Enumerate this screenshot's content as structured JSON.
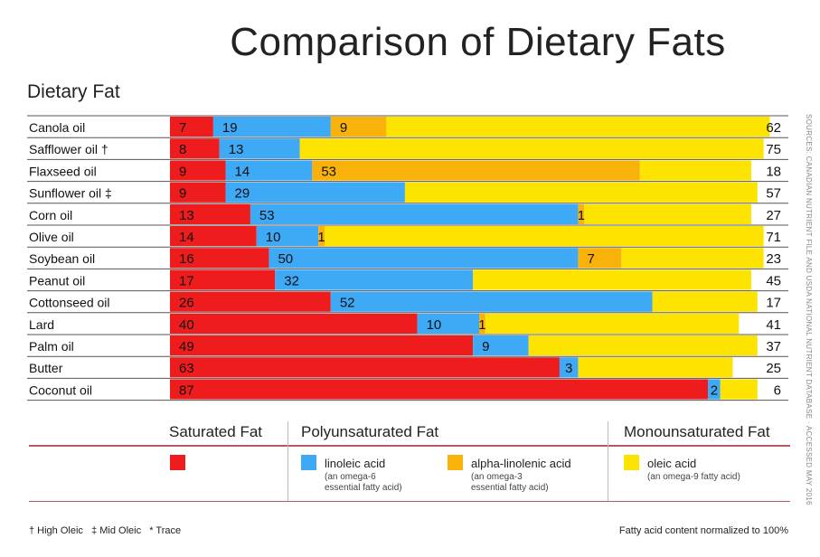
{
  "title": "Comparison of Dietary Fats",
  "subtitle": "Dietary Fat",
  "source_note": "SOURCES: CANADIAN NUTRIENT FILE AND USDA NATIONAL NUTRIENT DATABASE · ACCESSED MAY 2016",
  "colors": {
    "saturated": "#ee1c1c",
    "linoleic": "#3ea9f5",
    "alpha_linolenic": "#f8b20a",
    "oleic": "#fde400",
    "row_line": "#555555",
    "legend_line": "#b35a5a"
  },
  "legend": {
    "headers": [
      "Saturated Fat",
      "Polyunsaturated Fat",
      "Monounsaturated Fat"
    ],
    "items": [
      {
        "label": "linoleic acid",
        "sub1": "(an omega-6",
        "sub2": "essential fatty acid)"
      },
      {
        "label": "alpha-linolenic acid",
        "sub1": "(an omega-3",
        "sub2": "essential fatty acid)"
      },
      {
        "label": "oleic acid",
        "sub1": "(an omega-9 fatty acid)",
        "sub2": ""
      }
    ]
  },
  "footer": {
    "left": "† High Oleic   ‡ Mid Oleic   * Trace",
    "right": "Fatty acid content normalized to 100%"
  },
  "chart_data": {
    "type": "bar",
    "stacked": true,
    "orientation": "horizontal",
    "categories": [
      "Canola oil",
      "Safflower oil †",
      "Flaxseed oil",
      "Sunflower oil ‡",
      "Corn oil",
      "Olive oil",
      "Soybean oil",
      "Peanut oil",
      "Cottonseed oil",
      "Lard",
      "Palm oil",
      "Butter",
      "Coconut oil"
    ],
    "series": [
      {
        "name": "Saturated Fat",
        "values": [
          7,
          8,
          9,
          9,
          13,
          14,
          16,
          17,
          26,
          40,
          49,
          63,
          87
        ]
      },
      {
        "name": "linoleic acid",
        "values": [
          19,
          13,
          14,
          29,
          53,
          10,
          50,
          32,
          52,
          10,
          9,
          3,
          2
        ]
      },
      {
        "name": "alpha-linolenic acid",
        "values": [
          9,
          "*",
          53,
          "*",
          1,
          1,
          7,
          0,
          "*",
          1,
          "*",
          "*",
          0
        ]
      },
      {
        "name": "oleic acid",
        "values": [
          62,
          75,
          18,
          57,
          27,
          71,
          23,
          45,
          17,
          41,
          37,
          25,
          6
        ]
      }
    ],
    "xlim": [
      0,
      100
    ]
  }
}
